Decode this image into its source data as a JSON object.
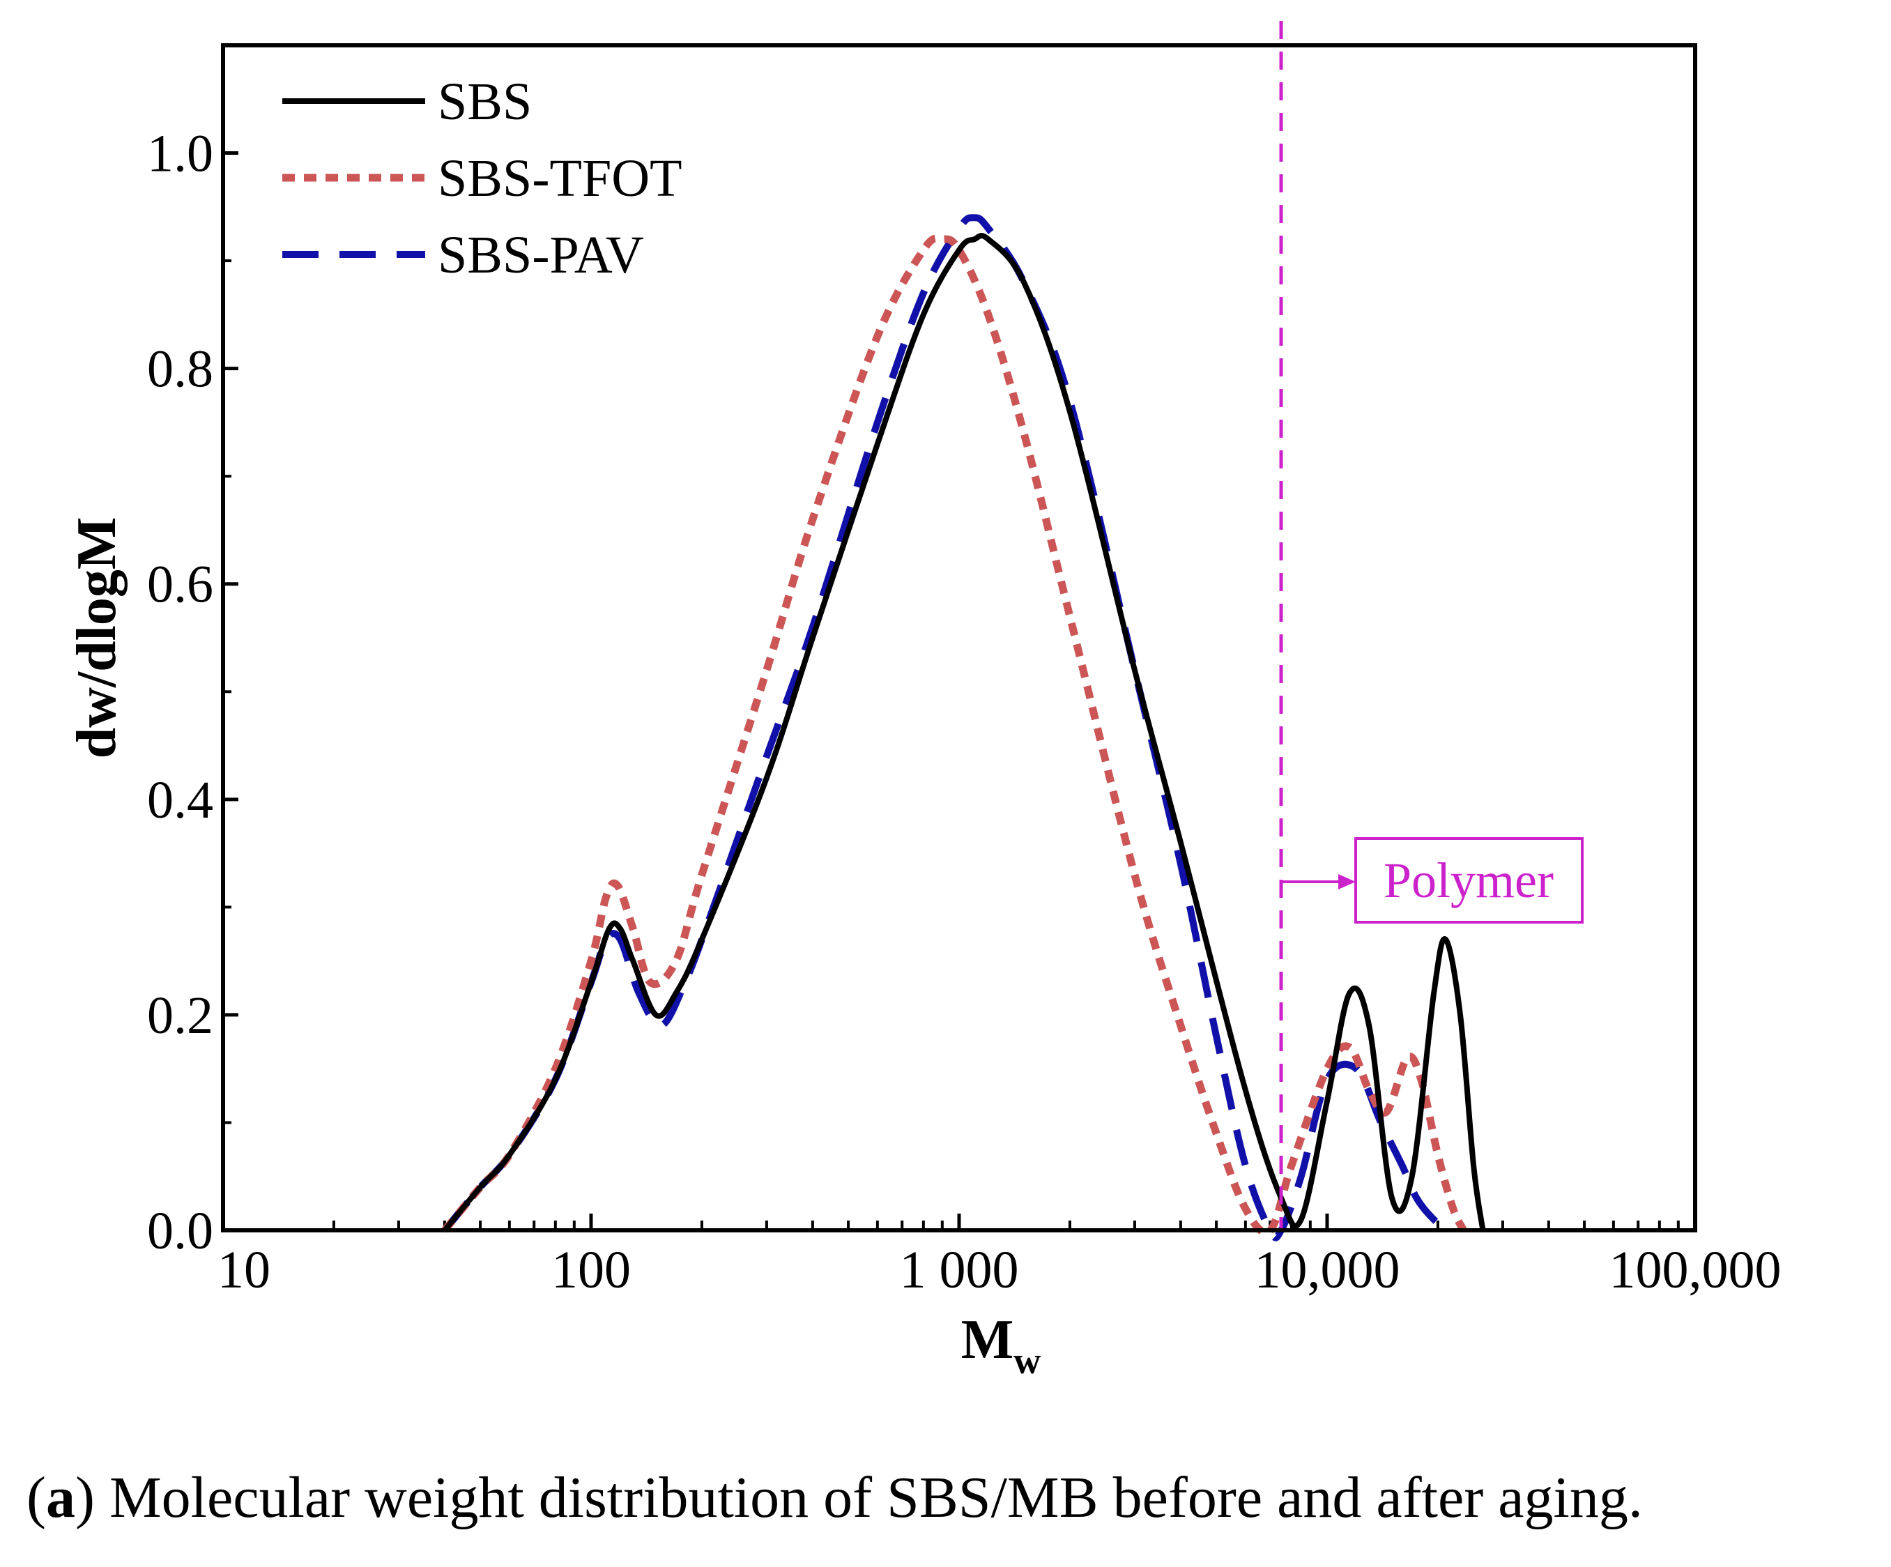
{
  "chart_data": {
    "type": "line",
    "x_scale": "log",
    "xlabel": "M",
    "xlabel_sub": "w",
    "ylabel": "dw/dlogM",
    "xlim": [
      10,
      100000
    ],
    "ylim": [
      0,
      1.1
    ],
    "x_ticks": [
      10,
      100,
      1000,
      10000,
      100000
    ],
    "x_tick_labels": [
      "10",
      "100",
      "1 000",
      "10,000",
      "100,000"
    ],
    "y_ticks": [
      0,
      0.2,
      0.4,
      0.6,
      0.8,
      1.0
    ],
    "y_tick_labels": [
      "0.0",
      "0.2",
      "0.4",
      "0.6",
      "0.8",
      "1.0"
    ],
    "legend_position": "top-left",
    "grid": false,
    "series": [
      {
        "name": "SBS",
        "color": "#000000",
        "style": "solid",
        "x": [
          40,
          50,
          60,
          80,
          100,
          112,
          120,
          130,
          150,
          170,
          200,
          300,
          400,
          600,
          800,
          1000,
          1100,
          1200,
          1500,
          2000,
          3000,
          4000,
          6000,
          7500,
          8500,
          10000,
          11500,
          13000,
          15000,
          17000,
          19500,
          21000,
          23000,
          25000,
          26500
        ],
        "y": [
          0.0,
          0.04,
          0.07,
          0.14,
          0.23,
          0.28,
          0.28,
          0.25,
          0.2,
          0.22,
          0.27,
          0.42,
          0.55,
          0.73,
          0.85,
          0.91,
          0.92,
          0.92,
          0.88,
          0.76,
          0.52,
          0.36,
          0.13,
          0.03,
          0.01,
          0.12,
          0.22,
          0.19,
          0.03,
          0.05,
          0.22,
          0.27,
          0.2,
          0.06,
          0.0
        ]
      },
      {
        "name": "SBS-TFOT",
        "color": "#cc5555",
        "style": "dotted",
        "x": [
          40,
          50,
          60,
          80,
          100,
          110,
          118,
          130,
          145,
          170,
          200,
          300,
          400,
          600,
          800,
          900,
          1000,
          1200,
          1500,
          2000,
          3000,
          4000,
          5000,
          6000,
          7000,
          8000,
          10000,
          11500,
          13000,
          14500,
          16500,
          18000,
          20000,
          22000,
          23500
        ],
        "y": [
          0.0,
          0.04,
          0.07,
          0.15,
          0.25,
          0.31,
          0.32,
          0.28,
          0.23,
          0.25,
          0.33,
          0.52,
          0.66,
          0.83,
          0.91,
          0.92,
          0.91,
          0.85,
          0.74,
          0.57,
          0.33,
          0.19,
          0.09,
          0.02,
          0.0,
          0.06,
          0.15,
          0.17,
          0.13,
          0.11,
          0.16,
          0.14,
          0.07,
          0.02,
          0.0
        ]
      },
      {
        "name": "SBS-PAV",
        "color": "#1111aa",
        "style": "dashed",
        "x": [
          40,
          50,
          60,
          80,
          100,
          110,
          120,
          135,
          155,
          180,
          210,
          300,
          400,
          600,
          800,
          1000,
          1100,
          1200,
          1500,
          2000,
          3000,
          4000,
          5000,
          6000,
          7000,
          7500,
          8500,
          10000,
          12000,
          14000,
          16000,
          17500,
          19500,
          21500
        ],
        "y": [
          0.0,
          0.04,
          0.07,
          0.14,
          0.23,
          0.27,
          0.27,
          0.22,
          0.19,
          0.23,
          0.29,
          0.44,
          0.56,
          0.75,
          0.87,
          0.93,
          0.94,
          0.93,
          0.88,
          0.77,
          0.52,
          0.34,
          0.18,
          0.06,
          0.0,
          0.0,
          0.05,
          0.14,
          0.15,
          0.1,
          0.06,
          0.03,
          0.01,
          0.0
        ]
      }
    ],
    "annotations": [
      {
        "type": "vline",
        "x": 7500,
        "color": "#cc22cc",
        "style": "dashed"
      },
      {
        "type": "label",
        "text": "Polymer",
        "color": "#cc22cc",
        "boxed": true
      }
    ]
  },
  "caption": {
    "letter": "a",
    "text": " Molecular weight distribution of SBS/MB before and after aging."
  }
}
